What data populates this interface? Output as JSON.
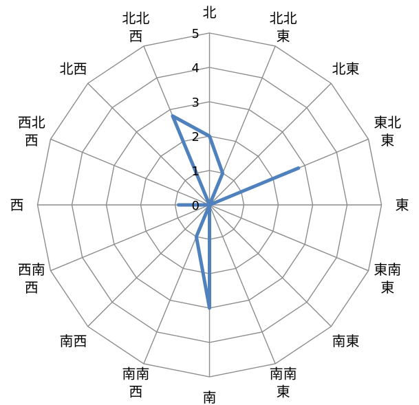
{
  "chart_data": {
    "type": "radar",
    "categories": [
      "北",
      "北北\n東",
      "北東",
      "東北\n東",
      "東",
      "東南\n東",
      "南東",
      "南南\n東",
      "南",
      "南南\n西",
      "南西",
      "西南\n西",
      "西",
      "西北\n西",
      "北西",
      "北北\n西"
    ],
    "series": [
      {
        "values": [
          2,
          1,
          0,
          2.8,
          0,
          0,
          0,
          0,
          3,
          1,
          0,
          0,
          0.9,
          0,
          0,
          2.8
        ]
      }
    ],
    "rticks": [
      0,
      1,
      2,
      3,
      4,
      5
    ],
    "rlim": [
      0,
      5
    ],
    "grid": true,
    "legend": "none",
    "colors": {
      "series": "#4f81bd",
      "grid": "#8c8c8c"
    }
  }
}
